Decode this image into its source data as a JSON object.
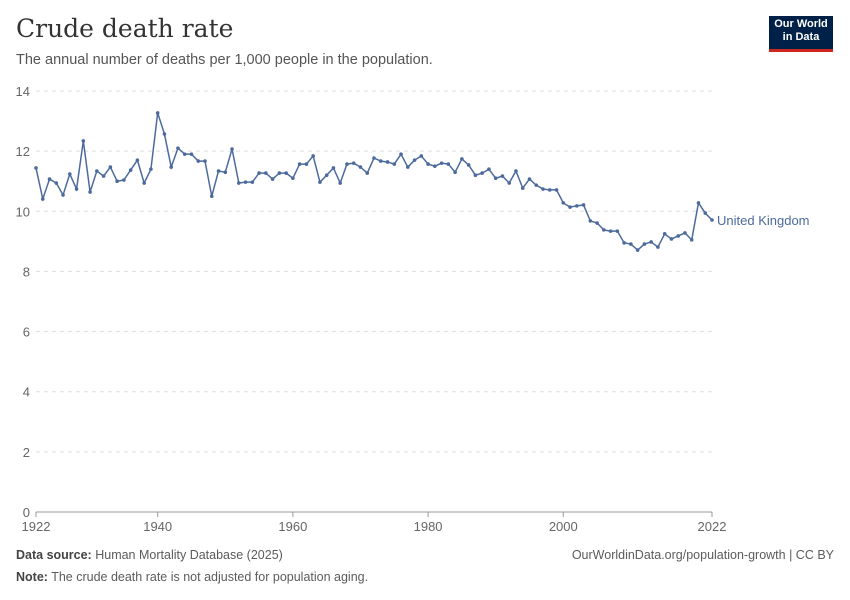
{
  "header": {
    "title": "Crude death rate",
    "subtitle": "The annual number of deaths per 1,000 people in the population.",
    "logo_line1": "Our World",
    "logo_line2": "in Data"
  },
  "footer": {
    "source_label": "Data source:",
    "source": "Human Mortality Database (2025)",
    "url": "OurWorldinData.org/population-growth | CC BY",
    "note_label": "Note:",
    "note": "The crude death rate is not adjusted for population aging."
  },
  "chart_data": {
    "type": "line",
    "title": "Crude death rate",
    "xlim": [
      1922,
      2022
    ],
    "ylim": [
      0,
      14
    ],
    "x_ticks": [
      1922,
      1940,
      1960,
      1980,
      2000,
      2022
    ],
    "y_ticks": [
      0,
      2,
      4,
      6,
      8,
      10,
      12,
      14
    ],
    "grid": "horizontal dashed",
    "line_color": "#4c6a9c",
    "series": [
      {
        "name": "United Kingdom",
        "x_start": 1922,
        "values": [
          11.44,
          10.41,
          11.07,
          10.94,
          10.54,
          11.24,
          10.74,
          12.34,
          10.64,
          11.34,
          11.17,
          11.47,
          11.0,
          11.04,
          11.37,
          11.7,
          10.94,
          11.4,
          13.27,
          12.57,
          11.47,
          12.1,
          11.9,
          11.9,
          11.67,
          11.67,
          10.5,
          11.34,
          11.3,
          12.07,
          10.94,
          10.97,
          10.97,
          11.27,
          11.27,
          11.07,
          11.27,
          11.27,
          11.1,
          11.57,
          11.57,
          11.84,
          10.97,
          11.2,
          11.44,
          10.94,
          11.57,
          11.6,
          11.47,
          11.27,
          11.77,
          11.67,
          11.64,
          11.57,
          11.9,
          11.47,
          11.7,
          11.84,
          11.57,
          11.5,
          11.6,
          11.57,
          11.3,
          11.74,
          11.54,
          11.2,
          11.27,
          11.4,
          11.1,
          11.17,
          10.94,
          11.34,
          10.77,
          11.07,
          10.87,
          10.74,
          10.71,
          10.71,
          10.28,
          10.14,
          10.18,
          10.21,
          9.68,
          9.61,
          9.38,
          9.34,
          9.34,
          8.95,
          8.91,
          8.71,
          8.91,
          8.98,
          8.81,
          9.25,
          9.08,
          9.18,
          9.28,
          9.05,
          10.28,
          9.94,
          9.71
        ]
      }
    ]
  }
}
